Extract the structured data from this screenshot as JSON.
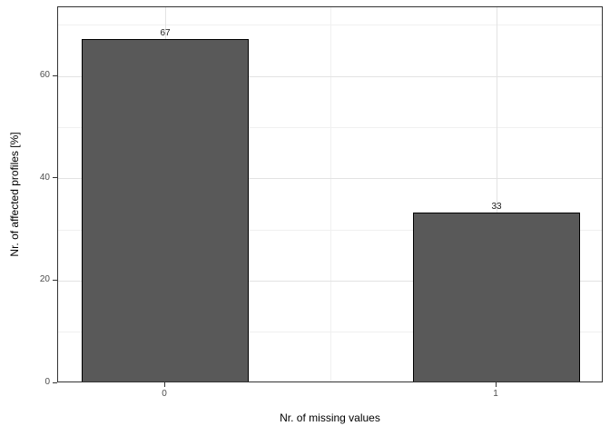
{
  "chart_data": {
    "type": "bar",
    "categories": [
      "0",
      "1"
    ],
    "values": [
      67,
      33
    ],
    "data_labels": [
      "67",
      "33"
    ],
    "title": "",
    "xlabel": "Nr. of missing values",
    "ylabel": "Nr. of affected profiles [%]",
    "ylim": [
      0,
      73.5
    ],
    "y_major_ticks": [
      0,
      20,
      40,
      60
    ],
    "y_minor_ticks": [
      10,
      30,
      50,
      70
    ],
    "grid": "horizontal major+minor, vertical major at category centers, minor between categories",
    "legend_position": "none",
    "style": "ggplot2 theme_bw",
    "colors": {
      "bar_fill": "#595959",
      "bar_border": "#000000",
      "panel_border": "#333333",
      "grid_major": "#e3e3e3",
      "grid_minor": "#f0f0f0",
      "tick_label": "#4d4d4d",
      "axis_title": "#000000",
      "background": "#ffffff"
    }
  }
}
